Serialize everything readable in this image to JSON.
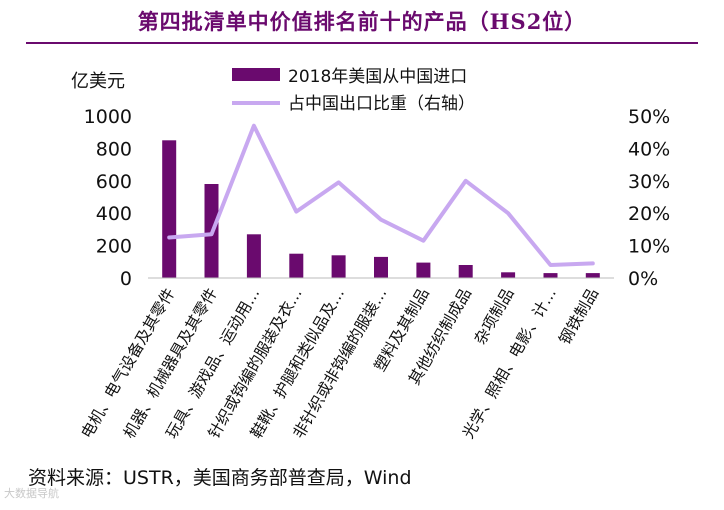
{
  "page": {
    "title": "第四批清单中价值排名前十的产品（HS2位）",
    "source": "资料来源：USTR，美国商务部普查局，Wind",
    "watermark": "大数据导航"
  },
  "chart_data": {
    "type": "bar",
    "categories": [
      "电机、电气设备及其零件",
      "机器、机械器具及其零件",
      "玩具、游戏品、运动用…",
      "针织或钩编的服装及衣…",
      "鞋靴、护腿和类似品及…",
      "非针织或非钩编的服装…",
      "塑料及其制品",
      "其他纺织制成品",
      "杂项制品",
      "光学、照相、电影、计…",
      "钢铁制品"
    ],
    "series": [
      {
        "name": "2018年美国从中国进口",
        "type": "bar",
        "axis": "left",
        "values": [
          850,
          580,
          270,
          150,
          140,
          130,
          95,
          80,
          35,
          30,
          30
        ]
      },
      {
        "name": "占中国出口比重（右轴）",
        "type": "line",
        "axis": "right",
        "values": [
          12.5,
          13.5,
          47,
          20.5,
          29.5,
          18,
          11.5,
          30,
          20,
          4,
          4.5
        ]
      }
    ],
    "left_axis": {
      "unit_label": "亿美元",
      "ylim": [
        0,
        1000
      ],
      "ticks": [
        0,
        200,
        400,
        600,
        800,
        1000
      ]
    },
    "right_axis": {
      "ylim": [
        0,
        50
      ],
      "ticks": [
        "0%",
        "10%",
        "20%",
        "30%",
        "40%",
        "50%"
      ]
    },
    "legend_position": "top-center",
    "grid": false,
    "colors": {
      "bar": "#6a0a6e",
      "line": "#c8a8f0",
      "title": "#6a0a6e"
    }
  }
}
